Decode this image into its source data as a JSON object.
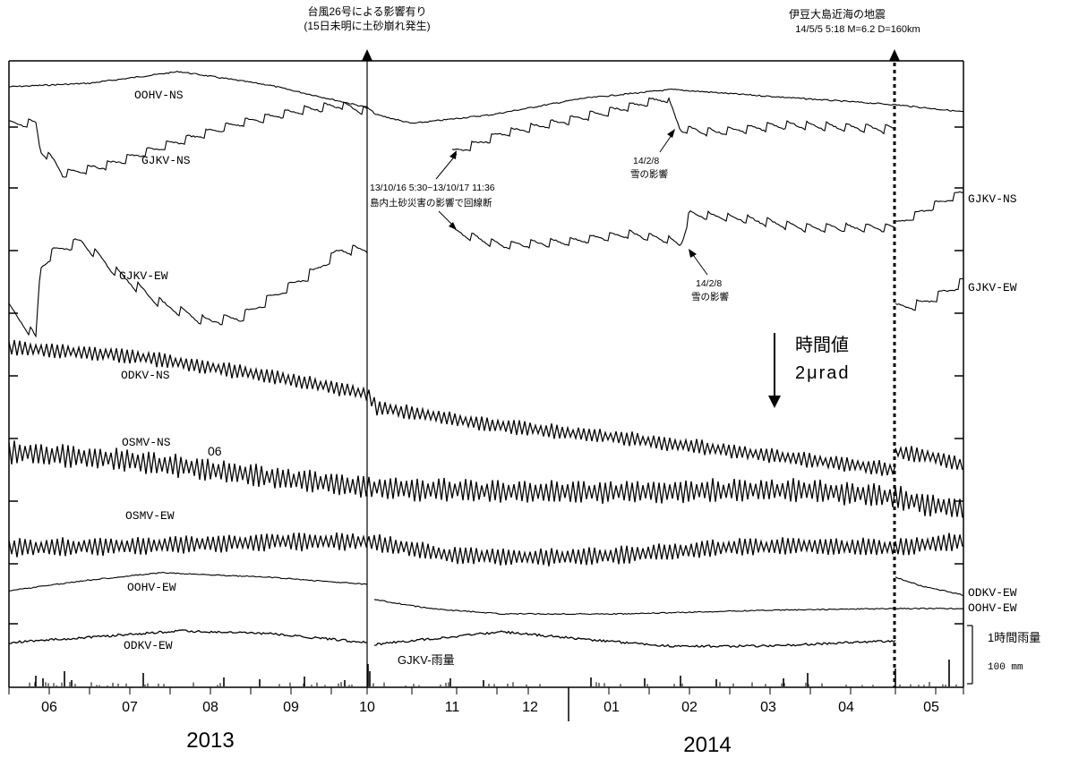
{
  "chart_data": {
    "type": "line",
    "title": "",
    "xlabel": "",
    "ylabel": "",
    "months": [
      "06",
      "07",
      "08",
      "09",
      "10",
      "11",
      "12",
      "01",
      "02",
      "03",
      "04",
      "05"
    ],
    "years": [
      "2013",
      "2014"
    ],
    "series": [
      {
        "name": "OOHV-NS",
        "color": "#000000"
      },
      {
        "name": "GJKV-NS",
        "color": "#000000"
      },
      {
        "name": "GJKV-EW",
        "color": "#000000"
      },
      {
        "name": "ODKV-NS",
        "color": "#000000"
      },
      {
        "name": "OSMV-NS",
        "color": "#000000"
      },
      {
        "name": "OSMV-EW",
        "color": "#000000"
      },
      {
        "name": "OOHV-EW",
        "color": "#000000"
      },
      {
        "name": "ODKV-EW",
        "color": "#000000"
      }
    ],
    "rain_label": "GJKV-雨量",
    "rain_scale_label": "1時間雨量",
    "rain_scale_value": "100 mm",
    "scale_title": "時間値",
    "scale_value": "2μrad",
    "stray_label": "06",
    "right_labels": {
      "gjkv_ns": "GJKV-NS",
      "gjkv_ew": "GJKV-EW",
      "odkv_ew": "ODKV-EW",
      "oohv_ew": "OOHV-EW"
    },
    "annotations": {
      "typhoon_line1": "台風26号による影響有り",
      "typhoon_line2": "(15日未明に土砂崩れ発生)",
      "quake_line1": "伊豆大島近海の地震",
      "quake_line2": "14/5/5 5:18 M=6.2 D=160km",
      "outage_line1": "13/10/16 5:30~13/10/17 11:36",
      "outage_line2": "島内土砂災害の影響で回線断",
      "snow1_date": "14/2/8",
      "snow1_text": "雪の影響",
      "snow2_date": "14/2/8",
      "snow2_text": "雪の影響"
    }
  }
}
